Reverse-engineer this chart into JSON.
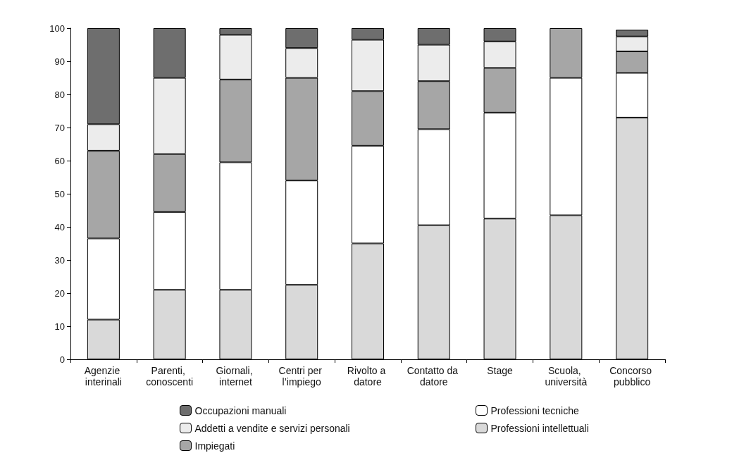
{
  "chart_data": {
    "type": "bar",
    "stacked": true,
    "categories": [
      "Agenzie interinali",
      "Parenti, conoscenti",
      "Giornali, internet",
      "Centri per l’impiego",
      "Rivolto a datore",
      "Contatto da datore",
      "Stage",
      "Scuola, università",
      "Concorso pubblico"
    ],
    "series": [
      {
        "name": "Professioni intellettuali",
        "color": "#d9d9d9",
        "values": [
          12,
          21,
          21,
          22.5,
          35,
          40.5,
          42.5,
          43.5,
          73
        ]
      },
      {
        "name": "Professioni tecniche",
        "color": "#ffffff",
        "values": [
          24.5,
          23.5,
          38.5,
          31.5,
          29.5,
          29,
          32,
          41.5,
          13.5
        ]
      },
      {
        "name": "Impiegati",
        "color": "#a6a6a6",
        "values": [
          26.5,
          17.5,
          25,
          31,
          16.5,
          14.5,
          13.5,
          15,
          6.5
        ]
      },
      {
        "name": "Addetti a vendite e servizi personali",
        "color": "#ececec",
        "values": [
          8,
          23,
          13.5,
          9,
          15.5,
          11,
          8,
          null,
          4.5
        ]
      },
      {
        "name": "Occupazioni manuali",
        "color": "#6e6e6e",
        "values": [
          29,
          15,
          2,
          6,
          3.5,
          5,
          4,
          null,
          2
        ]
      }
    ],
    "ylim": [
      0,
      100
    ],
    "yticks": [
      0,
      10,
      20,
      30,
      40,
      50,
      60,
      70,
      80,
      90,
      100
    ],
    "grid": false,
    "legend": "bottom"
  }
}
